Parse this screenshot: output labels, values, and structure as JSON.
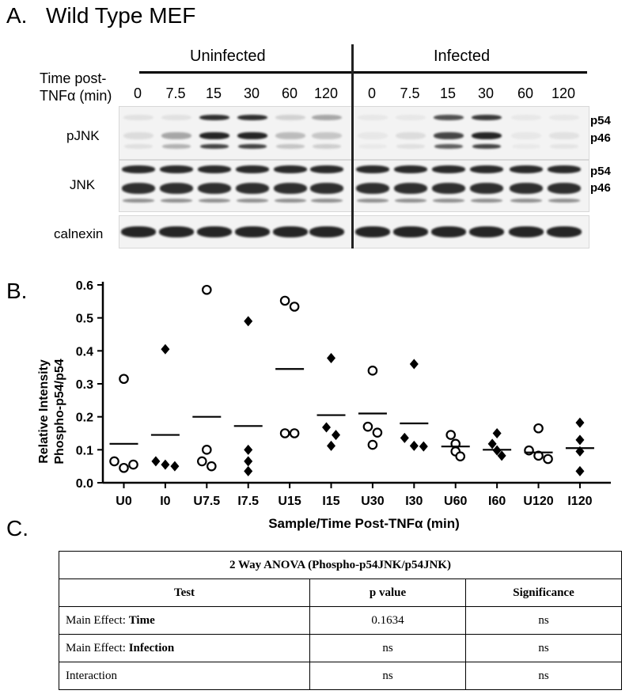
{
  "panelA": {
    "label": "A.",
    "title": "Wild Type MEF",
    "uninfected": "Uninfected",
    "infected": "Infected",
    "time_label_1": "Time post-",
    "time_label_2": "TNFα (min)",
    "timepoints": [
      "0",
      "7.5",
      "15",
      "30",
      "60",
      "120",
      "0",
      "7.5",
      "15",
      "30",
      "60",
      "120"
    ],
    "rows": {
      "pjnk": "pJNK",
      "jnk": "JNK",
      "calnexin": "calnexin"
    },
    "bands": {
      "pjnk_p54": "p54",
      "pjnk_p46": "p46",
      "jnk_p54": "p54",
      "jnk_p46": "p46"
    }
  },
  "panelB": {
    "label": "B."
  },
  "panelC": {
    "label": "C."
  },
  "chart_data": {
    "type": "scatter",
    "ylabel_1": "Relative Intensity",
    "ylabel_2": "Phospho-p54/p54",
    "xlabel": "Sample/Time  Post-TNFα (min)",
    "ylim": [
      0,
      0.6
    ],
    "yticks": [
      "0.0",
      "0.1",
      "0.2",
      "0.3",
      "0.4",
      "0.5",
      "0.6"
    ],
    "categories": [
      "U0",
      "I0",
      "U7.5",
      "I7.5",
      "U15",
      "I15",
      "U30",
      "I30",
      "U60",
      "I60",
      "U120",
      "I120"
    ],
    "markers": [
      "circle",
      "diamond",
      "circle",
      "diamond",
      "circle",
      "diamond",
      "circle",
      "diamond",
      "circle",
      "diamond",
      "circle",
      "diamond"
    ],
    "points": [
      [
        0.315,
        0.065,
        0.045,
        0.055
      ],
      [
        0.405,
        0.065,
        0.055,
        0.05
      ],
      [
        0.585,
        0.1,
        0.065,
        0.05
      ],
      [
        0.49,
        0.1,
        0.065,
        0.035
      ],
      [
        0.552,
        0.534,
        0.15,
        0.15
      ],
      [
        0.378,
        0.168,
        0.145,
        0.112
      ],
      [
        0.34,
        0.17,
        0.152,
        0.115
      ],
      [
        0.36,
        0.136,
        0.112,
        0.11
      ],
      [
        0.145,
        0.118,
        0.095,
        0.08
      ],
      [
        0.15,
        0.118,
        0.098,
        0.082
      ],
      [
        0.165,
        0.098,
        0.082,
        0.072
      ],
      [
        0.182,
        0.13,
        0.095,
        0.035
      ]
    ],
    "means": [
      0.118,
      0.145,
      0.2,
      0.172,
      0.345,
      0.205,
      0.21,
      0.18,
      0.11,
      0.1,
      0.092,
      0.105
    ]
  },
  "table": {
    "title": "2 Way ANOVA (Phospho-p54JNK/p54JNK)",
    "headers": [
      "Test",
      "p value",
      "Significance"
    ],
    "rows": [
      {
        "prefix": "Main Effect: ",
        "bold": "Time",
        "p": "0.1634",
        "sig": "ns"
      },
      {
        "prefix": "Main Effect: ",
        "bold": "Infection",
        "p": "ns",
        "sig": "ns"
      },
      {
        "prefix": "Interaction",
        "bold": "",
        "p": "ns",
        "sig": "ns"
      }
    ]
  }
}
